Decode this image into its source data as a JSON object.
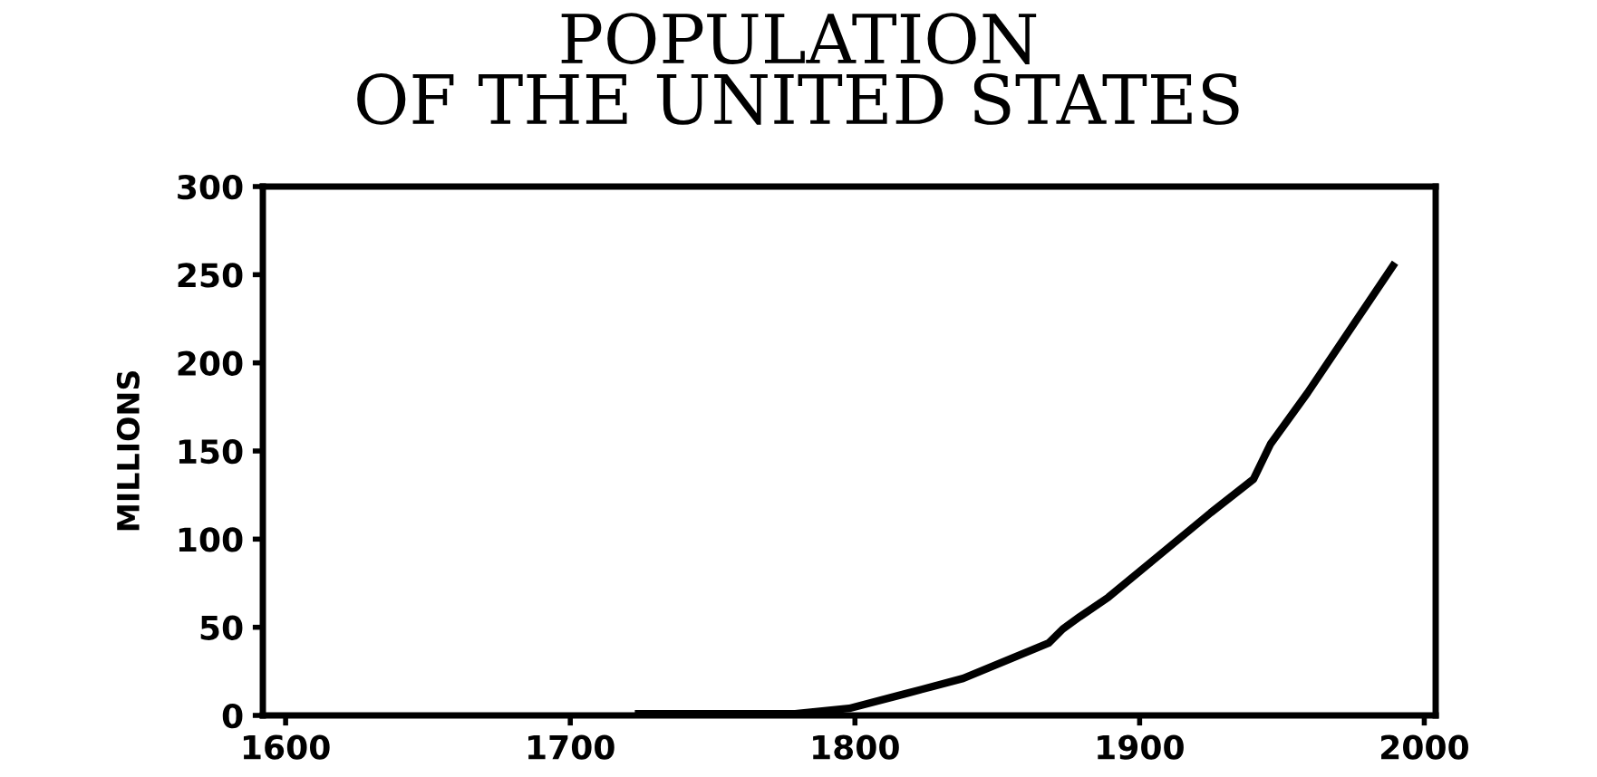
{
  "chart_data": {
    "type": "line",
    "title": "POPULATION\nOF THE UNITED STATES",
    "ylabel": "MILLIONS",
    "x": [
      1724,
      1779,
      1798,
      1817,
      1838,
      1868,
      1873,
      1879,
      1889,
      1904,
      1925,
      1940,
      1946,
      1959,
      1989
    ],
    "series": [
      {
        "color": "#000000",
        "values": [
          1,
          1,
          4,
          12,
          21,
          41,
          49,
          56,
          67,
          87,
          115,
          134,
          154,
          183,
          255
        ]
      }
    ],
    "xlim": [
      1592,
      2004
    ],
    "xticks": [
      1600,
      1700,
      1800,
      1900,
      2000
    ],
    "ylim": [
      0,
      300
    ],
    "yticks": [
      0,
      50,
      100,
      150,
      200,
      250,
      300
    ],
    "grid": false,
    "marker": "none",
    "line_style": "solid"
  }
}
